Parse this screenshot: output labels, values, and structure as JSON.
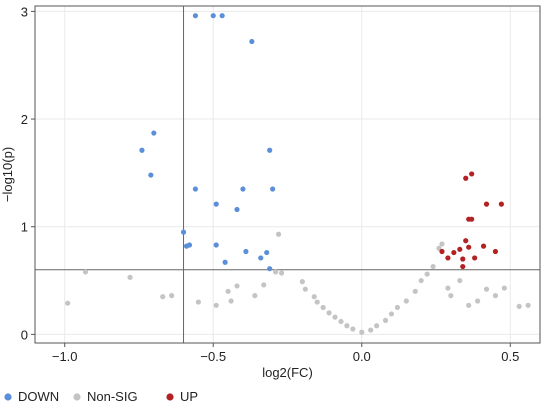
{
  "colors": {
    "down": "#5b8fd9",
    "nonsig": "#c4c4c4",
    "up": "#b22222",
    "grid": "#e9e9e9",
    "threshold": "#666666"
  },
  "chart_data": {
    "type": "scatter",
    "title": "",
    "xlabel": "log2(FC)",
    "ylabel": "−log10(p)",
    "xlim": [
      -1.1,
      0.6
    ],
    "ylim": [
      -0.08,
      3.05
    ],
    "x_ticks": [
      -1.0,
      -0.5,
      0.0,
      0.5
    ],
    "x_tick_labels": [
      "−1.0",
      "−0.5",
      "0.0",
      "0.5"
    ],
    "y_ticks": [
      0,
      1,
      2,
      3
    ],
    "y_tick_labels": [
      "0",
      "1",
      "2",
      "3"
    ],
    "grid": true,
    "legend_placement": "bottom-left",
    "thresholds": {
      "log2fc": [
        -0.6,
        0.6
      ],
      "neg_log10_p": 0.6
    },
    "series": [
      {
        "name": "DOWN",
        "color": "#5b8fd9",
        "points": [
          [
            -0.56,
            2.96
          ],
          [
            -0.5,
            2.96
          ],
          [
            -0.47,
            2.96
          ],
          [
            -0.37,
            2.72
          ],
          [
            -0.7,
            1.87
          ],
          [
            -0.74,
            1.71
          ],
          [
            -0.71,
            1.48
          ],
          [
            -0.31,
            1.71
          ],
          [
            -0.56,
            1.35
          ],
          [
            -0.4,
            1.35
          ],
          [
            -0.3,
            1.35
          ],
          [
            -0.49,
            1.21
          ],
          [
            -0.42,
            1.16
          ],
          [
            -0.6,
            0.95
          ],
          [
            -0.59,
            0.82
          ],
          [
            -0.58,
            0.83
          ],
          [
            -0.49,
            0.83
          ],
          [
            -0.39,
            0.77
          ],
          [
            -0.32,
            0.76
          ],
          [
            -0.46,
            0.67
          ],
          [
            -0.34,
            0.71
          ],
          [
            -0.31,
            0.61
          ]
        ]
      },
      {
        "name": "Non-SIG",
        "color": "#c4c4c4",
        "points": [
          [
            -0.99,
            0.29
          ],
          [
            -0.93,
            0.58
          ],
          [
            -0.78,
            0.53
          ],
          [
            -0.67,
            0.35
          ],
          [
            -0.64,
            0.36
          ],
          [
            -0.55,
            0.3
          ],
          [
            -0.49,
            0.27
          ],
          [
            -0.45,
            0.4
          ],
          [
            -0.44,
            0.31
          ],
          [
            -0.42,
            0.45
          ],
          [
            -0.36,
            0.36
          ],
          [
            -0.33,
            0.46
          ],
          [
            -0.28,
            0.93
          ],
          [
            -0.29,
            0.58
          ],
          [
            -0.27,
            0.57
          ],
          [
            -0.2,
            0.49
          ],
          [
            -0.19,
            0.42
          ],
          [
            -0.16,
            0.35
          ],
          [
            -0.15,
            0.3
          ],
          [
            -0.13,
            0.25
          ],
          [
            -0.11,
            0.2
          ],
          [
            -0.09,
            0.16
          ],
          [
            -0.07,
            0.12
          ],
          [
            -0.05,
            0.08
          ],
          [
            -0.03,
            0.05
          ],
          [
            0.0,
            0.02
          ],
          [
            0.03,
            0.04
          ],
          [
            0.05,
            0.08
          ],
          [
            0.08,
            0.13
          ],
          [
            0.1,
            0.19
          ],
          [
            0.12,
            0.25
          ],
          [
            0.15,
            0.31
          ],
          [
            0.18,
            0.4
          ],
          [
            0.2,
            0.5
          ],
          [
            0.22,
            0.56
          ],
          [
            0.24,
            0.63
          ],
          [
            0.26,
            0.8
          ],
          [
            0.27,
            0.84
          ],
          [
            0.29,
            0.43
          ],
          [
            0.3,
            0.36
          ],
          [
            0.33,
            0.5
          ],
          [
            0.36,
            0.27
          ],
          [
            0.39,
            0.31
          ],
          [
            0.42,
            0.42
          ],
          [
            0.45,
            0.36
          ],
          [
            0.48,
            0.43
          ],
          [
            0.53,
            0.26
          ],
          [
            0.56,
            0.27
          ]
        ]
      },
      {
        "name": "UP",
        "color": "#b22222",
        "points": [
          [
            0.35,
            1.45
          ],
          [
            0.37,
            1.49
          ],
          [
            0.42,
            1.21
          ],
          [
            0.47,
            1.21
          ],
          [
            0.36,
            1.07
          ],
          [
            0.37,
            1.07
          ],
          [
            0.35,
            0.87
          ],
          [
            0.36,
            0.81
          ],
          [
            0.33,
            0.79
          ],
          [
            0.27,
            0.77
          ],
          [
            0.31,
            0.76
          ],
          [
            0.41,
            0.82
          ],
          [
            0.45,
            0.77
          ],
          [
            0.29,
            0.71
          ],
          [
            0.34,
            0.7
          ],
          [
            0.38,
            0.71
          ],
          [
            0.34,
            0.63
          ]
        ]
      }
    ]
  }
}
